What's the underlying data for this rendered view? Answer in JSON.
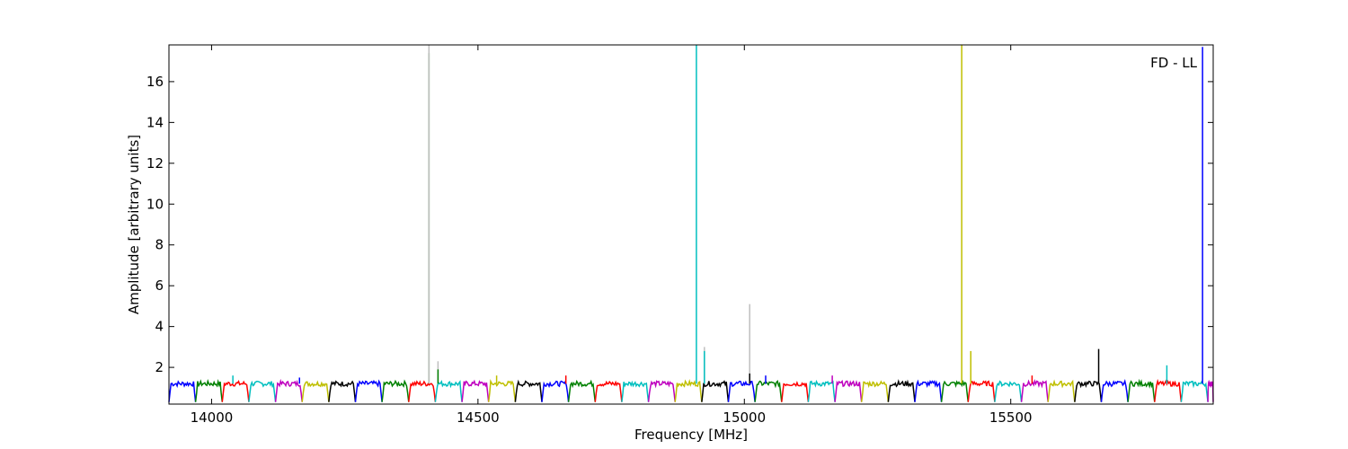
{
  "chart_data": {
    "type": "line",
    "title": "",
    "annotation": "FD - LL",
    "xlabel": "Frequency [MHz]",
    "ylabel": "Amplitude [arbitrary units]",
    "xlim": [
      13920,
      15880
    ],
    "ylim": [
      0.2,
      17.8
    ],
    "xticks": [
      14000,
      14500,
      15000,
      15500
    ],
    "yticks": [
      2,
      4,
      6,
      8,
      10,
      12,
      14,
      16
    ],
    "grid": false,
    "legend": "none",
    "band_width_mhz": 50,
    "color_cycle": [
      "#0000ff",
      "#008000",
      "#ff0000",
      "#00bfbf",
      "#bf00bf",
      "#bfbf00",
      "#000000"
    ],
    "series_note": "Repeating 50 MHz spectral windows; each window shows a flat plateau at ~1.1-1.3 with dips near ~0.3 at window edges.",
    "baseline_level": 1.2,
    "spikes": [
      {
        "x": 14408,
        "y": 17.4,
        "color": "#008000"
      },
      {
        "x": 14408,
        "y": 17.8,
        "color": "#bfbfbf"
      },
      {
        "x": 14425,
        "y": 2.3,
        "color": "#bfbfbf"
      },
      {
        "x": 14425,
        "y": 1.9,
        "color": "#008000"
      },
      {
        "x": 14910,
        "y": 17.8,
        "color": "#00bfbf"
      },
      {
        "x": 14925,
        "y": 3.0,
        "color": "#bfbfbf"
      },
      {
        "x": 14925,
        "y": 2.8,
        "color": "#00bfbf"
      },
      {
        "x": 15010,
        "y": 5.1,
        "color": "#bfbfbf"
      },
      {
        "x": 15010,
        "y": 1.7,
        "color": "#000000"
      },
      {
        "x": 15408,
        "y": 17.8,
        "color": "#bfbf00"
      },
      {
        "x": 15425,
        "y": 2.8,
        "color": "#bfbf00"
      },
      {
        "x": 15665,
        "y": 2.9,
        "color": "#000000"
      },
      {
        "x": 15793,
        "y": 2.1,
        "color": "#00bfbf"
      },
      {
        "x": 15860,
        "y": 17.7,
        "color": "#0000ff"
      },
      {
        "x": 14040,
        "y": 1.6,
        "color": "#00bfbf"
      },
      {
        "x": 14165,
        "y": 1.5,
        "color": "#0000ff"
      },
      {
        "x": 14535,
        "y": 1.6,
        "color": "#bfbf00"
      },
      {
        "x": 14665,
        "y": 1.6,
        "color": "#ff0000"
      },
      {
        "x": 15040,
        "y": 1.6,
        "color": "#0000ff"
      },
      {
        "x": 15165,
        "y": 1.6,
        "color": "#bf00bf"
      },
      {
        "x": 15540,
        "y": 1.6,
        "color": "#ff0000"
      }
    ]
  }
}
